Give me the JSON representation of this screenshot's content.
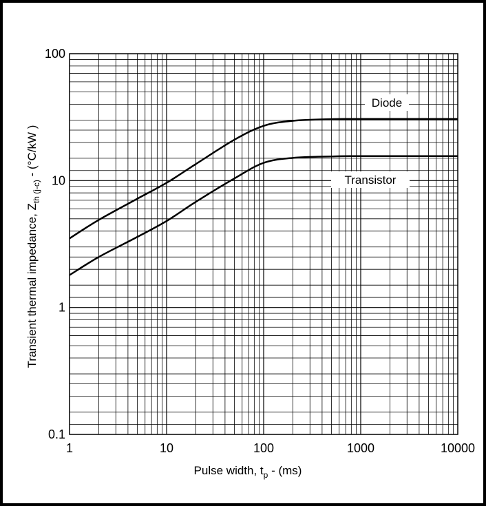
{
  "chart_data": {
    "type": "line",
    "title": "",
    "x_scale": "log",
    "y_scale": "log",
    "xlim": [
      1,
      10000
    ],
    "ylim": [
      0.1,
      100
    ],
    "grid": true,
    "x_ticks": [
      "1",
      "10",
      "100",
      "1000",
      "10000"
    ],
    "y_ticks": [
      "100",
      "10",
      "1",
      "0.1"
    ],
    "xlabel": {
      "main": "Pulse width, t",
      "sub": "p",
      "suffix": " - (ms)"
    },
    "ylabel": {
      "main": "Transient thermal impedance, Z",
      "sub": "th (j-c)",
      "suffix": " - (°C/kW )"
    },
    "series": [
      {
        "name": "Diode",
        "x": [
          1,
          2,
          5,
          10,
          20,
          50,
          100,
          200,
          500,
          1000,
          10000
        ],
        "values": [
          3.5,
          4.9,
          7.2,
          9.6,
          13.5,
          21,
          27,
          29.6,
          30.5,
          30.6,
          30.6
        ]
      },
      {
        "name": "Transistor",
        "x": [
          1,
          2,
          5,
          10,
          20,
          50,
          100,
          200,
          500,
          1000,
          10000
        ],
        "values": [
          1.8,
          2.5,
          3.6,
          4.8,
          6.8,
          10.4,
          13.8,
          15.1,
          15.5,
          15.6,
          15.6
        ]
      }
    ],
    "colors": {
      "line": "#000000",
      "grid": "#000000"
    }
  }
}
